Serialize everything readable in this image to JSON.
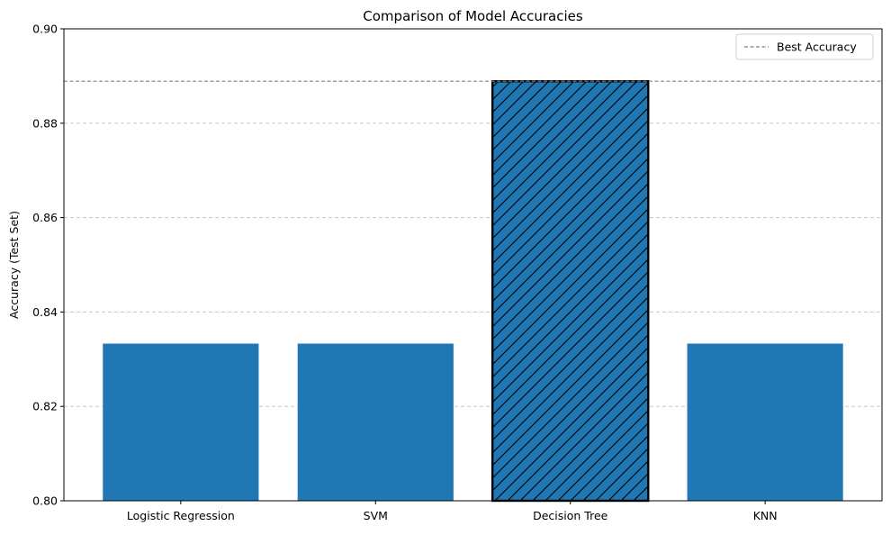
{
  "chart_data": {
    "type": "bar",
    "title": "Comparison of Model Accuracies",
    "xlabel": "",
    "ylabel": "Accuracy (Test Set)",
    "categories": [
      "Logistic Regression",
      "SVM",
      "Decision Tree",
      "KNN"
    ],
    "values": [
      0.8333,
      0.8333,
      0.8889,
      0.8333
    ],
    "highlighted_category": "Decision Tree",
    "ylim": [
      0.8,
      0.9
    ],
    "yticks": [
      "0.80",
      "0.82",
      "0.84",
      "0.86",
      "0.88",
      "0.90"
    ],
    "reference_line": {
      "label": "Best Accuracy",
      "value": 0.8889,
      "style": "dashed",
      "color": "#7f7f7f"
    },
    "grid": {
      "y": true,
      "style": "dashed",
      "color": "#c8c8c8"
    },
    "legend": {
      "position": "top-right",
      "entries": [
        "Best Accuracy"
      ]
    },
    "colors": {
      "bar": "#1f77b4",
      "highlight_edge": "#000000",
      "hatch": "#000000"
    }
  }
}
